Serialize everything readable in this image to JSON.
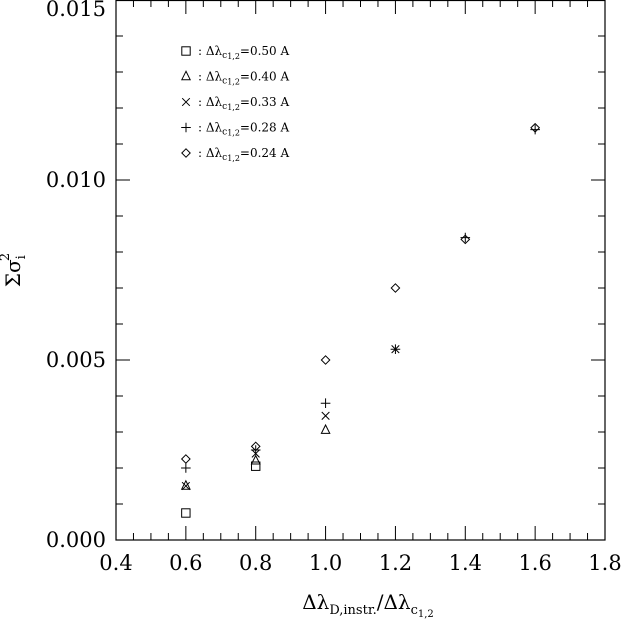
{
  "chart_data": {
    "type": "scatter",
    "title": "",
    "xlabel": {
      "prefix": "Δλ",
      "sub1": "D,instr.",
      "mid": "/Δλ",
      "sub2": "c",
      "sub2sub": "1,2"
    },
    "ylabel": {
      "main": "Σσ",
      "sub": "i",
      "sup": "2"
    },
    "xlim": [
      0.4,
      1.8
    ],
    "ylim": [
      0.0,
      0.015
    ],
    "xticks": [
      0.4,
      0.6,
      0.8,
      1.0,
      1.2,
      1.4,
      1.6,
      1.8
    ],
    "xtick_labels": [
      "0.4",
      "0.6",
      "0.8",
      "1.0",
      "1.2",
      "1.4",
      "1.6",
      "1.8"
    ],
    "yticks": [
      0.0,
      0.005,
      0.01,
      0.015
    ],
    "ytick_labels": [
      "0.000",
      "0.005",
      "0.010",
      "0.015"
    ],
    "x_minor_step": 0.05,
    "y_minor_step": 0.001,
    "grid": false,
    "legend_position": "top-left",
    "series": [
      {
        "marker": "square",
        "legend": {
          "prefix": ": Δλ",
          "sub": "c",
          "subsub": "1,2",
          "value": "=0.50 A"
        },
        "x": [
          0.6,
          0.8
        ],
        "y": [
          0.00075,
          0.00205
        ]
      },
      {
        "marker": "triangle",
        "legend": {
          "prefix": ": Δλ",
          "sub": "c",
          "subsub": "1,2",
          "value": "=0.40 A"
        },
        "x": [
          0.6,
          0.8,
          1.0
        ],
        "y": [
          0.0015,
          0.0022,
          0.00305
        ]
      },
      {
        "marker": "x",
        "legend": {
          "prefix": ": Δλ",
          "sub": "c",
          "subsub": "1,2",
          "value": "=0.33 A"
        },
        "x": [
          0.6,
          0.8,
          1.0,
          1.2
        ],
        "y": [
          0.0015,
          0.0024,
          0.00345,
          0.0053
        ]
      },
      {
        "marker": "plus",
        "legend": {
          "prefix": ": Δλ",
          "sub": "c",
          "subsub": "1,2",
          "value": "=0.28 A"
        },
        "x": [
          0.6,
          0.8,
          1.0,
          1.2,
          1.4,
          1.6
        ],
        "y": [
          0.002,
          0.0025,
          0.0038,
          0.0053,
          0.0084,
          0.0114
        ]
      },
      {
        "marker": "diamond",
        "legend": {
          "prefix": ": Δλ",
          "sub": "c",
          "subsub": "1,2",
          "value": "=0.24 A"
        },
        "x": [
          0.6,
          0.8,
          1.0,
          1.2,
          1.4,
          1.6
        ],
        "y": [
          0.00225,
          0.0026,
          0.005,
          0.007,
          0.00835,
          0.01145
        ]
      }
    ]
  }
}
